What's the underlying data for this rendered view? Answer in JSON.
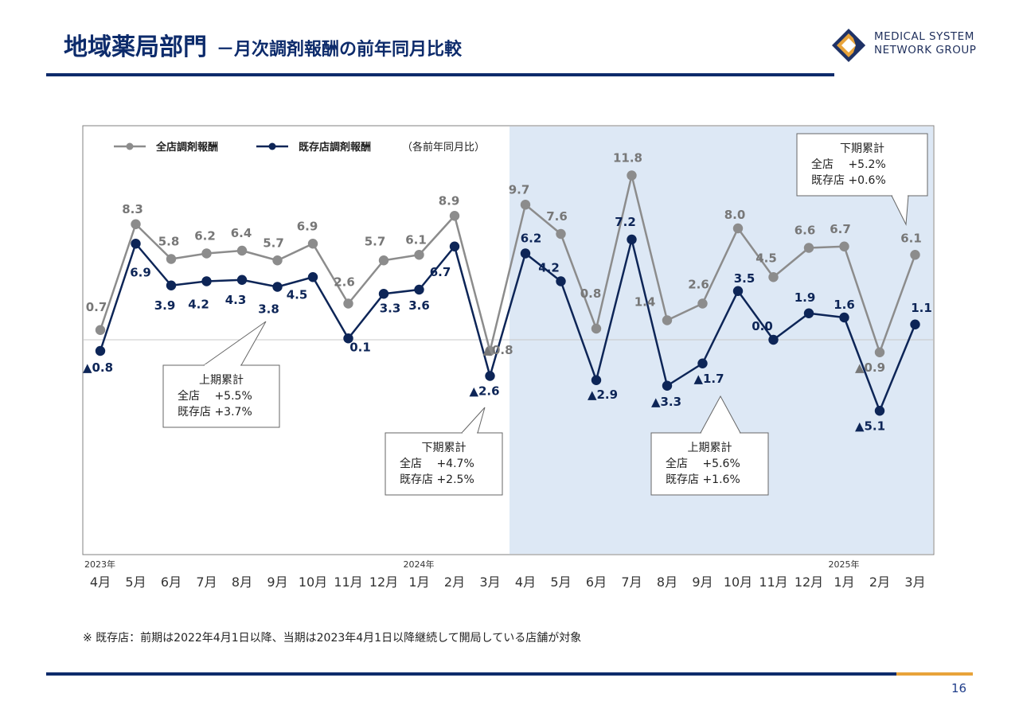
{
  "header": {
    "title": "地域薬局部門",
    "subtitle": "－月次調剤報酬の前年同月比較",
    "logo_line1": "MEDICAL SYSTEM",
    "logo_line2": "NETWORK GROUP"
  },
  "footnote": "※ 既存店：前期は2022年4月1日以降、当期は2023年4月1日以降継続して開局している店舗が対象",
  "page_number": "16",
  "colors": {
    "all_stores": "#8c8c8c",
    "existing_stores": "#0d2557",
    "highlight_bg": "#dde8f5",
    "brand": "#0d2b6b",
    "accent": "#e8a33a"
  },
  "chart_data": {
    "type": "line",
    "categories": [
      "4月",
      "5月",
      "6月",
      "7月",
      "8月",
      "9月",
      "10月",
      "11月",
      "12月",
      "1月",
      "2月",
      "3月",
      "4月",
      "5月",
      "6月",
      "7月",
      "8月",
      "9月",
      "10月",
      "11月",
      "12月",
      "1月",
      "2月",
      "3月"
    ],
    "year_labels": [
      {
        "label": "2023年",
        "index": 0
      },
      {
        "label": "2024年",
        "index": 9
      },
      {
        "label": "2025年",
        "index": 21
      }
    ],
    "legend_note": "（各前年同月比）",
    "series": [
      {
        "name": "全店調剤報酬",
        "values": [
          0.7,
          8.3,
          5.8,
          6.2,
          6.4,
          5.7,
          6.9,
          2.6,
          5.7,
          6.1,
          8.9,
          -0.8,
          9.7,
          7.6,
          0.8,
          11.8,
          1.4,
          2.6,
          8.0,
          4.5,
          6.6,
          6.7,
          -0.9,
          6.1
        ],
        "labels": [
          "0.7",
          "8.3",
          "5.8",
          "6.2",
          "6.4",
          "5.7",
          "6.9",
          "2.6",
          "5.7",
          "6.1",
          "8.9",
          "▲0.8",
          "9.7",
          "7.6",
          "0.8",
          "11.8",
          "1.4",
          "2.6",
          "8.0",
          "4.5",
          "6.6",
          "6.7",
          "▲0.9",
          "6.1"
        ]
      },
      {
        "name": "既存店調剤報酬",
        "values": [
          -0.8,
          6.9,
          3.9,
          4.2,
          4.3,
          3.8,
          4.5,
          0.1,
          3.3,
          3.6,
          6.7,
          -2.6,
          6.2,
          4.2,
          -2.9,
          7.2,
          -3.3,
          -1.7,
          3.5,
          0.0,
          1.9,
          1.6,
          -5.1,
          1.1
        ],
        "labels": [
          "▲0.8",
          "6.9",
          "3.9",
          "4.2",
          "4.3",
          "3.8",
          "4.5",
          "0.1",
          "3.3",
          "3.6",
          "6.7",
          "▲2.6",
          "6.2",
          "4.2",
          "▲2.9",
          "7.2",
          "▲3.3",
          "▲1.7",
          "3.5",
          "0.0",
          "1.9",
          "1.6",
          "▲5.1",
          "1.1"
        ]
      }
    ],
    "ylim": [
      -15,
      13
    ],
    "grid": false,
    "legend_position": "top-left",
    "callouts": [
      {
        "title": "上期累計",
        "lines": [
          "全店　 +5.5%",
          "既存店 +3.7%"
        ]
      },
      {
        "title": "下期累計",
        "lines": [
          "全店　 +4.7%",
          "既存店 +2.5%"
        ]
      },
      {
        "title": "上期累計",
        "lines": [
          "全店　 +5.6%",
          "既存店 +1.6%"
        ]
      },
      {
        "title": "下期累計",
        "lines": [
          "全店　 +5.2%",
          "既存店 +0.6%"
        ]
      }
    ]
  }
}
